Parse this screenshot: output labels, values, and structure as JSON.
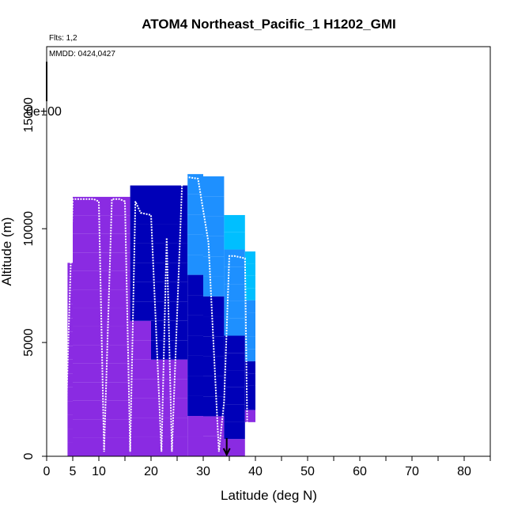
{
  "chart_data": {
    "type": "heatmap",
    "title": "ATOM4 Northeast_Pacific_1 H1202_GMI",
    "subtitle_flights": "Flts: 1,2",
    "subtitle_dates": "MMDD: 0424,0427",
    "xlabel": "Latitude (deg N)",
    "ylabel": "Altitude (m)",
    "xlim": [
      0,
      85
    ],
    "ylim": [
      0,
      18000
    ],
    "x_ticks": [
      0,
      5,
      10,
      20,
      30,
      40,
      50,
      60,
      70,
      80
    ],
    "y_ticks": [
      0,
      5000,
      10000,
      15000
    ],
    "colorbar_stub_label": "0e+00",
    "grid": false,
    "legend": "none",
    "colors": {
      "low": "#8a2be2",
      "mid_low": "#0000b8",
      "mid": "#1e90ff",
      "mid_high": "#00bfff",
      "high": "#ffd700",
      "max": "#ff0000",
      "flight_track": "#ffffff"
    },
    "heatmap_columns": [
      {
        "lat": [
          4,
          5
        ],
        "alt": [
          0,
          8500
        ],
        "level": 0
      },
      {
        "lat": [
          5,
          10
        ],
        "alt": [
          0,
          11400
        ],
        "level": 0
      },
      {
        "lat": [
          10,
          16
        ],
        "alt": [
          0,
          11400
        ],
        "level": 0.1
      },
      {
        "lat": [
          16,
          20
        ],
        "alt": [
          0,
          11900
        ],
        "level": 0.3
      },
      {
        "lat": [
          20,
          27
        ],
        "alt": [
          0,
          11900
        ],
        "level": 0.35
      },
      {
        "lat": [
          27,
          30
        ],
        "alt": [
          0,
          12400
        ],
        "level": 0.5
      },
      {
        "lat": [
          30,
          34
        ],
        "alt": [
          0,
          12300
        ],
        "level": 0.55
      },
      {
        "lat": [
          34,
          38
        ],
        "alt": [
          0,
          10600
        ],
        "level": 0.6
      },
      {
        "lat": [
          38,
          40
        ],
        "alt": [
          1500,
          9000
        ],
        "level": 0.7
      }
    ],
    "flight_track": {
      "lat": [
        3.5,
        5,
        7,
        9,
        10,
        11,
        12.5,
        14,
        15,
        16,
        17,
        18,
        20,
        22,
        23,
        24,
        26,
        29,
        31,
        33,
        34,
        35,
        36,
        38,
        38.5
      ],
      "alt": [
        200,
        11300,
        11300,
        11300,
        11200,
        200,
        11300,
        11300,
        11200,
        200,
        11200,
        10700,
        10600,
        200,
        9600,
        200,
        12300,
        12200,
        9400,
        200,
        2400,
        8800,
        8800,
        8700,
        200
      ]
    },
    "marker_arrow_lat": 34.5
  }
}
